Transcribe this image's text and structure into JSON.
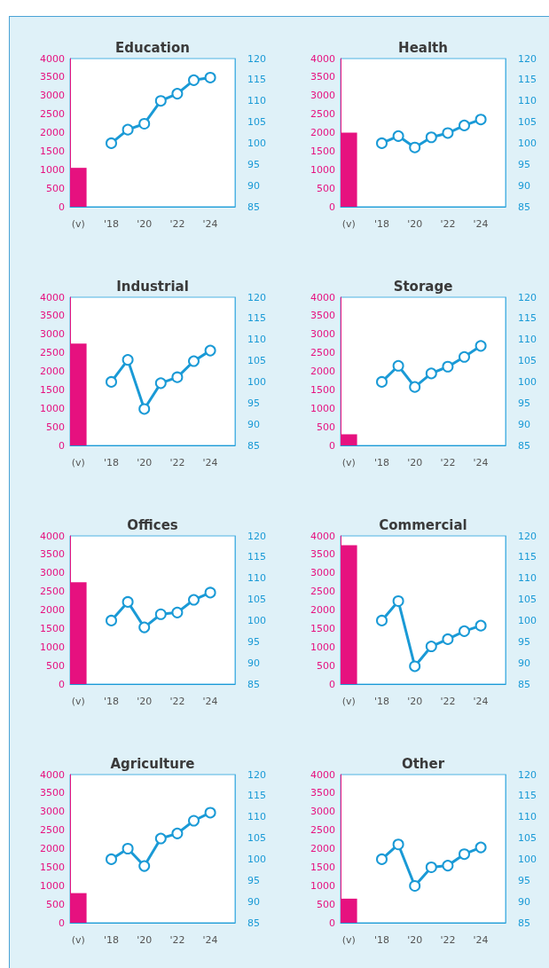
{
  "chart_data": [
    {
      "type": "bar",
      "title": "Education",
      "categories": [
        "(v)",
        null,
        "'18",
        null,
        "'20",
        null,
        "'22",
        null,
        "'24",
        null
      ],
      "series": [
        {
          "color": "#e6117f",
          "values": [
            1050,
            null,
            null,
            null,
            null,
            null,
            null,
            null,
            null,
            null
          ]
        },
        {
          "type": "line",
          "axis": "y2",
          "color": "#1a9ad6",
          "values": [
            null,
            null,
            100,
            103.2,
            104.6,
            110,
            111.7,
            114.9,
            115.5,
            null
          ]
        }
      ],
      "ylim": [
        0,
        4000
      ],
      "yticks": [
        0,
        500,
        1000,
        1500,
        2000,
        2500,
        3000,
        3500,
        4000
      ],
      "y2lim": [
        85,
        120
      ],
      "y2ticks": [
        85,
        90,
        95,
        100,
        105,
        110,
        115,
        120
      ],
      "marker": "circle"
    },
    {
      "type": "bar",
      "title": "Health",
      "categories": [
        "(v)",
        null,
        "'18",
        null,
        "'20",
        null,
        "'22",
        null,
        "'24",
        null
      ],
      "series": [
        {
          "color": "#e6117f",
          "values": [
            2000,
            null,
            null,
            null,
            null,
            null,
            null,
            null,
            null,
            null
          ]
        },
        {
          "type": "line",
          "axis": "y2",
          "color": "#1a9ad6",
          "values": [
            null,
            null,
            100,
            101.7,
            99,
            101.4,
            102.4,
            104.2,
            105.6,
            null
          ]
        }
      ],
      "ylim": [
        0,
        4000
      ],
      "yticks": [
        0,
        500,
        1000,
        1500,
        2000,
        2500,
        3000,
        3500,
        4000
      ],
      "y2lim": [
        85,
        120
      ],
      "y2ticks": [
        85,
        90,
        95,
        100,
        105,
        110,
        115,
        120
      ],
      "marker": "circle"
    },
    {
      "type": "bar",
      "title": "Industrial",
      "categories": [
        "(v)",
        null,
        "'18",
        null,
        "'20",
        null,
        "'22",
        null,
        "'24",
        null
      ],
      "series": [
        {
          "color": "#e6117f",
          "values": [
            2750,
            null,
            null,
            null,
            null,
            null,
            null,
            null,
            null,
            null
          ]
        },
        {
          "type": "line",
          "axis": "y2",
          "color": "#1a9ad6",
          "values": [
            null,
            null,
            100,
            105.2,
            93.6,
            99.7,
            101.1,
            104.9,
            107.4,
            null
          ]
        }
      ],
      "ylim": [
        0,
        4000
      ],
      "yticks": [
        0,
        500,
        1000,
        1500,
        2000,
        2500,
        3000,
        3500,
        4000
      ],
      "y2lim": [
        85,
        120
      ],
      "y2ticks": [
        85,
        90,
        95,
        100,
        105,
        110,
        115,
        120
      ],
      "marker": "circle"
    },
    {
      "type": "bar",
      "title": "Storage",
      "categories": [
        "(v)",
        null,
        "'18",
        null,
        "'20",
        null,
        "'22",
        null,
        "'24",
        null
      ],
      "series": [
        {
          "color": "#e6117f",
          "values": [
            300,
            null,
            null,
            null,
            null,
            null,
            null,
            null,
            null,
            null
          ]
        },
        {
          "type": "line",
          "axis": "y2",
          "color": "#1a9ad6",
          "values": [
            null,
            null,
            100,
            103.8,
            98.8,
            102,
            103.6,
            105.9,
            108.5,
            null
          ]
        }
      ],
      "ylim": [
        0,
        4000
      ],
      "yticks": [
        0,
        500,
        1000,
        1500,
        2000,
        2500,
        3000,
        3500,
        4000
      ],
      "y2lim": [
        85,
        120
      ],
      "y2ticks": [
        85,
        90,
        95,
        100,
        105,
        110,
        115,
        120
      ],
      "marker": "circle"
    },
    {
      "type": "bar",
      "title": "Offices",
      "categories": [
        "(v)",
        null,
        "'18",
        null,
        "'20",
        null,
        "'22",
        null,
        "'24",
        null
      ],
      "series": [
        {
          "color": "#e6117f",
          "values": [
            2750,
            null,
            null,
            null,
            null,
            null,
            null,
            null,
            null,
            null
          ]
        },
        {
          "type": "line",
          "axis": "y2",
          "color": "#1a9ad6",
          "values": [
            null,
            null,
            100,
            104.4,
            98.4,
            101.5,
            101.9,
            104.9,
            106.6,
            null
          ]
        }
      ],
      "ylim": [
        0,
        4000
      ],
      "yticks": [
        0,
        500,
        1000,
        1500,
        2000,
        2500,
        3000,
        3500,
        4000
      ],
      "y2lim": [
        85,
        120
      ],
      "y2ticks": [
        85,
        90,
        95,
        100,
        105,
        110,
        115,
        120
      ],
      "marker": "circle"
    },
    {
      "type": "bar",
      "title": "Commercial",
      "categories": [
        "(v)",
        null,
        "'18",
        null,
        "'20",
        null,
        "'22",
        null,
        "'24",
        null
      ],
      "series": [
        {
          "color": "#e6117f",
          "values": [
            3750,
            null,
            null,
            null,
            null,
            null,
            null,
            null,
            null,
            null
          ]
        },
        {
          "type": "line",
          "axis": "y2",
          "color": "#1a9ad6",
          "values": [
            null,
            null,
            100,
            104.6,
            89.2,
            93.9,
            95.6,
            97.5,
            98.8,
            null
          ]
        }
      ],
      "ylim": [
        0,
        4000
      ],
      "yticks": [
        0,
        500,
        1000,
        1500,
        2000,
        2500,
        3000,
        3500,
        4000
      ],
      "y2lim": [
        85,
        120
      ],
      "y2ticks": [
        85,
        90,
        95,
        100,
        105,
        110,
        115,
        120
      ],
      "marker": "circle"
    },
    {
      "type": "bar",
      "title": "Agriculture",
      "categories": [
        "(v)",
        null,
        "'18",
        null,
        "'20",
        null,
        "'22",
        null,
        "'24",
        null
      ],
      "series": [
        {
          "color": "#e6117f",
          "values": [
            800,
            null,
            null,
            null,
            null,
            null,
            null,
            null,
            null,
            null
          ]
        },
        {
          "type": "line",
          "axis": "y2",
          "color": "#1a9ad6",
          "values": [
            null,
            null,
            100,
            102.5,
            98.4,
            104.9,
            106.1,
            109.1,
            111,
            null
          ]
        }
      ],
      "ylim": [
        0,
        4000
      ],
      "yticks": [
        0,
        500,
        1000,
        1500,
        2000,
        2500,
        3000,
        3500,
        4000
      ],
      "y2lim": [
        85,
        120
      ],
      "y2ticks": [
        85,
        90,
        95,
        100,
        105,
        110,
        115,
        120
      ],
      "marker": "circle"
    },
    {
      "type": "bar",
      "title": "Other",
      "categories": [
        "(v)",
        null,
        "'18",
        null,
        "'20",
        null,
        "'22",
        null,
        "'24",
        null
      ],
      "series": [
        {
          "color": "#e6117f",
          "values": [
            650,
            null,
            null,
            null,
            null,
            null,
            null,
            null,
            null,
            null
          ]
        },
        {
          "type": "line",
          "axis": "y2",
          "color": "#1a9ad6",
          "values": [
            null,
            null,
            100,
            103.5,
            93.7,
            98.1,
            98.5,
            101.2,
            102.8,
            null
          ]
        }
      ],
      "ylim": [
        0,
        4000
      ],
      "yticks": [
        0,
        500,
        1000,
        1500,
        2000,
        2500,
        3000,
        3500,
        4000
      ],
      "y2lim": [
        85,
        120
      ],
      "y2ticks": [
        85,
        90,
        95,
        100,
        105,
        110,
        115,
        120
      ],
      "marker": "circle"
    }
  ]
}
